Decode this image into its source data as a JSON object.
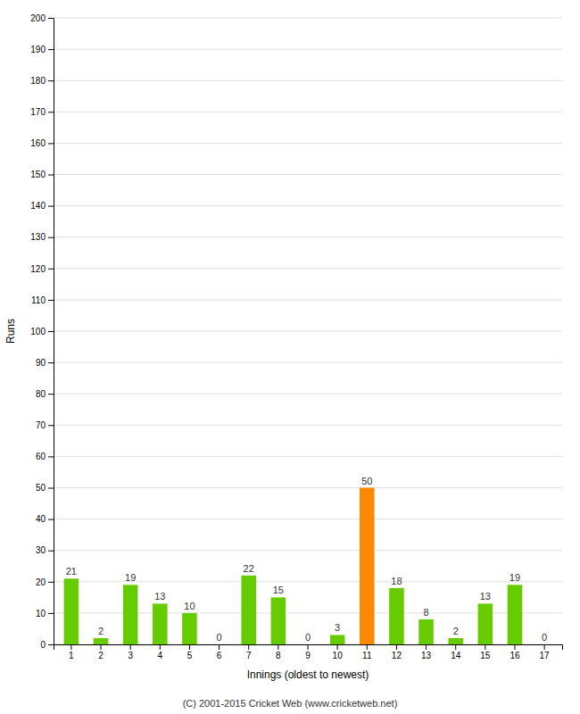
{
  "chart_data": {
    "type": "bar",
    "xlabel": "Innings (oldest to newest)",
    "ylabel": "Runs",
    "categories": [
      1,
      2,
      3,
      4,
      5,
      6,
      7,
      8,
      9,
      10,
      11,
      12,
      13,
      14,
      15,
      16,
      17
    ],
    "values": [
      21,
      2,
      19,
      13,
      10,
      0,
      22,
      15,
      0,
      3,
      50,
      18,
      8,
      2,
      13,
      19,
      0
    ],
    "colors": [
      "#66cc00",
      "#66cc00",
      "#66cc00",
      "#66cc00",
      "#66cc00",
      "#66cc00",
      "#66cc00",
      "#66cc00",
      "#66cc00",
      "#66cc00",
      "#ff8800",
      "#66cc00",
      "#66cc00",
      "#66cc00",
      "#66cc00",
      "#66cc00",
      "#66cc00"
    ],
    "ylim": [
      0,
      200
    ],
    "yticks": [
      0,
      10,
      20,
      30,
      40,
      50,
      60,
      70,
      80,
      90,
      100,
      110,
      120,
      130,
      140,
      150,
      160,
      170,
      180,
      190,
      200
    ],
    "grid": true,
    "data_labels": true,
    "annotations": [
      "(C) 2001-2015 Cricket Web (www.cricketweb.net)"
    ]
  }
}
